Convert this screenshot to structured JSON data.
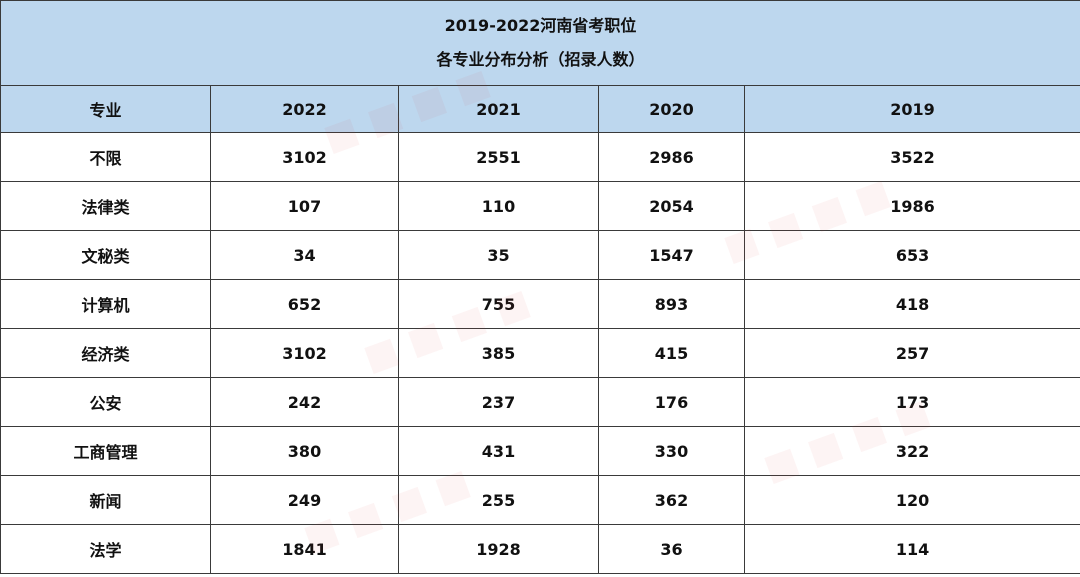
{
  "title": {
    "line1": "2019-2022河南省考职位",
    "line2": "各专业分布分析（招录人数）"
  },
  "headers": [
    "专业",
    "2022",
    "2021",
    "2020",
    "2019"
  ],
  "rows": [
    {
      "major": "不限",
      "y2022": "3102",
      "y2021": "2551",
      "y2020": "2986",
      "y2019": "3522"
    },
    {
      "major": "法律类",
      "y2022": "107",
      "y2021": "110",
      "y2020": "2054",
      "y2019": "1986"
    },
    {
      "major": "文秘类",
      "y2022": "34",
      "y2021": "35",
      "y2020": "1547",
      "y2019": "653"
    },
    {
      "major": "计算机",
      "y2022": "652",
      "y2021": "755",
      "y2020": "893",
      "y2019": "418"
    },
    {
      "major": "经济类",
      "y2022": "3102",
      "y2021": "385",
      "y2020": "415",
      "y2019": "257"
    },
    {
      "major": "公安",
      "y2022": "242",
      "y2021": "237",
      "y2020": "176",
      "y2019": "173"
    },
    {
      "major": "工商管理",
      "y2022": "380",
      "y2021": "431",
      "y2020": "330",
      "y2019": "322"
    },
    {
      "major": "新闻",
      "y2022": "249",
      "y2021": "255",
      "y2020": "362",
      "y2019": "120"
    },
    {
      "major": "法学",
      "y2022": "1841",
      "y2021": "1928",
      "y2020": "36",
      "y2019": "114"
    }
  ],
  "colors": {
    "header_bg": "#bdd7ee",
    "border": "#3a3a3a",
    "text": "#111111"
  }
}
